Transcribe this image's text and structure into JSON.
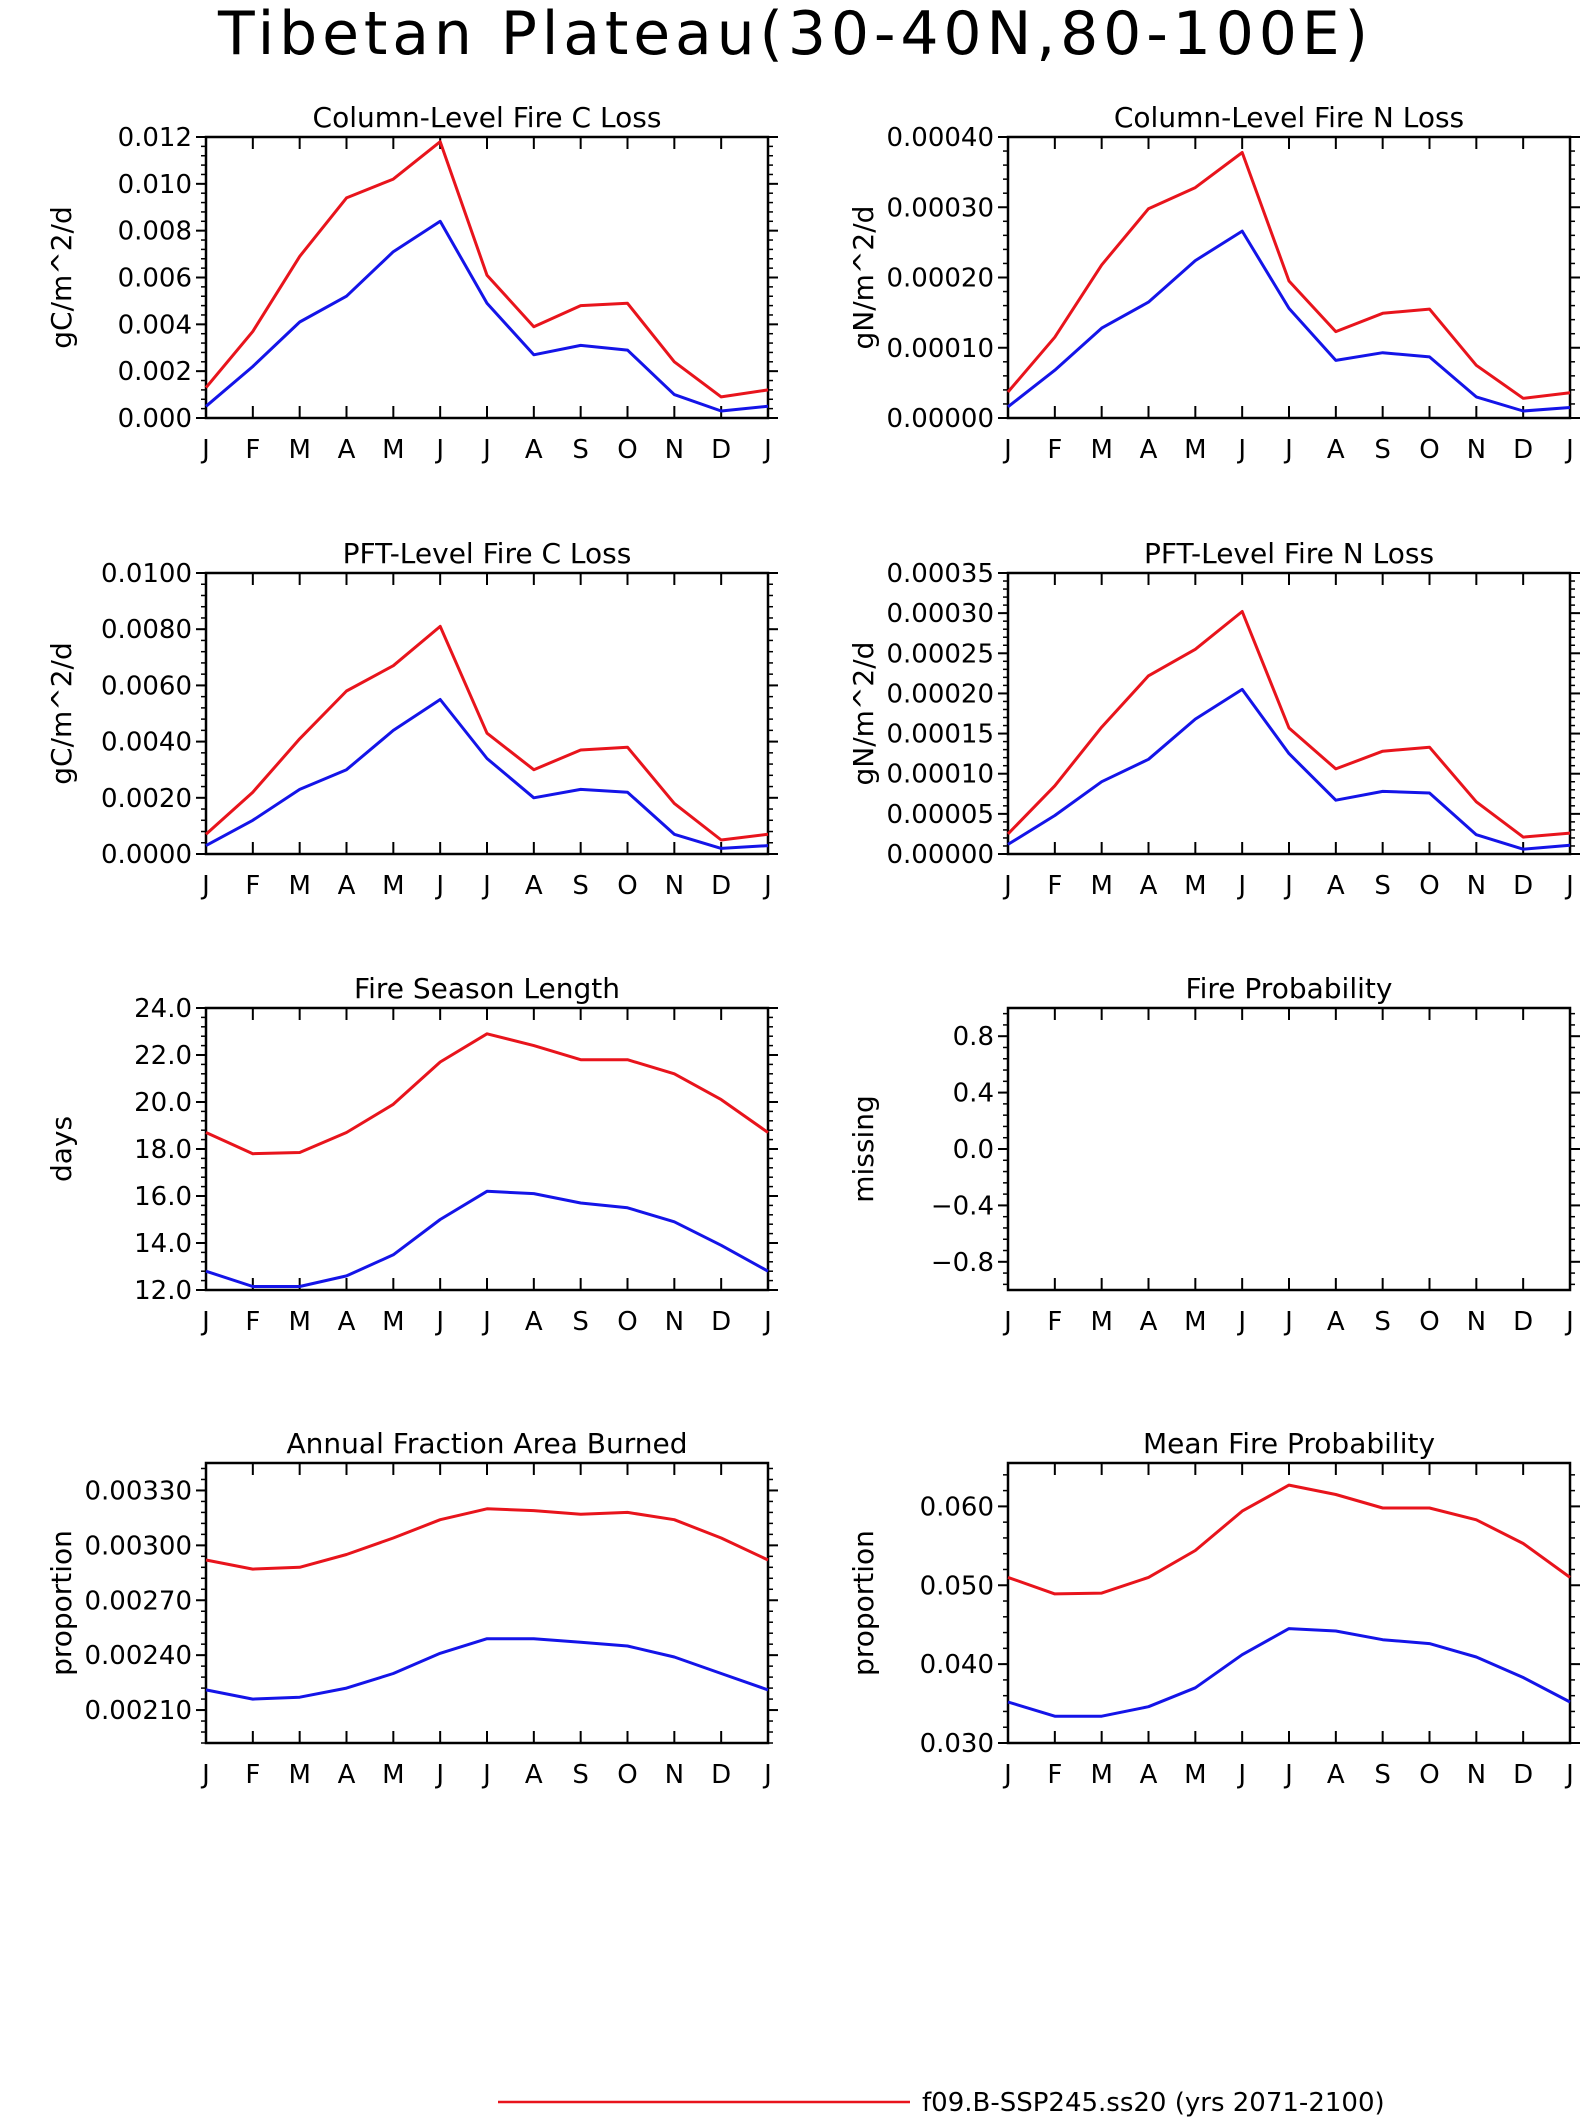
{
  "figure": {
    "title": "Tibetan Plateau(30-40N,80-100E)",
    "legend": [
      {
        "label": "f09.B-SSP245.ss20 (yrs 2071-2100)",
        "color": "#e8141c"
      }
    ]
  },
  "chart_data": [
    {
      "type": "line",
      "title": "Column-Level Fire C Loss",
      "xlabel": "",
      "ylabel": "gC/m^2/d",
      "categories": [
        "J",
        "F",
        "M",
        "A",
        "M",
        "J",
        "J",
        "A",
        "S",
        "O",
        "N",
        "D",
        "J"
      ],
      "ylim": [
        0,
        0.012
      ],
      "yticks": [
        0,
        0.002,
        0.004,
        0.006,
        0.008,
        0.01,
        0.012
      ],
      "ytick_labels": [
        "0.000",
        "0.002",
        "0.004",
        "0.006",
        "0.008",
        "0.010",
        "0.012"
      ],
      "series": [
        {
          "color": "#e8141c",
          "values": [
            0.0013,
            0.0037,
            0.0069,
            0.0094,
            0.0102,
            0.0118,
            0.0061,
            0.0039,
            0.0048,
            0.0049,
            0.0024,
            0.0009,
            0.0012
          ]
        },
        {
          "color": "#1414e8",
          "values": [
            0.0005,
            0.0022,
            0.0041,
            0.0052,
            0.0071,
            0.0084,
            0.0049,
            0.0027,
            0.0031,
            0.0029,
            0.001,
            0.0003,
            0.0005
          ]
        }
      ]
    },
    {
      "type": "line",
      "title": "Column-Level Fire N Loss",
      "xlabel": "",
      "ylabel": "gN/m^2/d",
      "categories": [
        "J",
        "F",
        "M",
        "A",
        "M",
        "J",
        "J",
        "A",
        "S",
        "O",
        "N",
        "D",
        "J"
      ],
      "ylim": [
        0,
        0.0004
      ],
      "yticks": [
        0,
        0.0001,
        0.0002,
        0.0003,
        0.0004
      ],
      "ytick_labels": [
        "0.00000",
        "0.00010",
        "0.00020",
        "0.00030",
        "0.00040"
      ],
      "series": [
        {
          "color": "#e8141c",
          "values": [
            3.7e-05,
            0.000115,
            0.000218,
            0.000298,
            0.000328,
            0.000378,
            0.000195,
            0.000123,
            0.000149,
            0.000155,
            7.5e-05,
            2.8e-05,
            3.6e-05
          ]
        },
        {
          "color": "#1414e8",
          "values": [
            1.6e-05,
            6.8e-05,
            0.000128,
            0.000165,
            0.000224,
            0.000266,
            0.000156,
            8.2e-05,
            9.3e-05,
            8.7e-05,
            3e-05,
            1e-05,
            1.5e-05
          ]
        }
      ]
    },
    {
      "type": "line",
      "title": "PFT-Level Fire C Loss",
      "xlabel": "",
      "ylabel": "gC/m^2/d",
      "categories": [
        "J",
        "F",
        "M",
        "A",
        "M",
        "J",
        "J",
        "A",
        "S",
        "O",
        "N",
        "D",
        "J"
      ],
      "ylim": [
        0,
        0.01
      ],
      "yticks": [
        0,
        0.002,
        0.004,
        0.006,
        0.008,
        0.01
      ],
      "ytick_labels": [
        "0.0000",
        "0.0020",
        "0.0040",
        "0.0060",
        "0.0080",
        "0.0100"
      ],
      "series": [
        {
          "color": "#e8141c",
          "values": [
            0.0007,
            0.0022,
            0.0041,
            0.0058,
            0.0067,
            0.0081,
            0.0043,
            0.003,
            0.0037,
            0.0038,
            0.0018,
            0.0005,
            0.0007
          ]
        },
        {
          "color": "#1414e8",
          "values": [
            0.0003,
            0.0012,
            0.0023,
            0.003,
            0.0044,
            0.0055,
            0.0034,
            0.002,
            0.0023,
            0.0022,
            0.0007,
            0.0002,
            0.0003
          ]
        }
      ]
    },
    {
      "type": "line",
      "title": "PFT-Level Fire N Loss",
      "xlabel": "",
      "ylabel": "gN/m^2/d",
      "categories": [
        "J",
        "F",
        "M",
        "A",
        "M",
        "J",
        "J",
        "A",
        "S",
        "O",
        "N",
        "D",
        "J"
      ],
      "ylim": [
        0,
        0.00035
      ],
      "yticks": [
        0,
        5e-05,
        0.0001,
        0.00015,
        0.0002,
        0.00025,
        0.0003,
        0.00035
      ],
      "ytick_labels": [
        "0.00000",
        "0.00005",
        "0.00010",
        "0.00015",
        "0.00020",
        "0.00025",
        "0.00030",
        "0.00035"
      ],
      "series": [
        {
          "color": "#e8141c",
          "values": [
            2.5e-05,
            8.5e-05,
            0.000158,
            0.000222,
            0.000255,
            0.000302,
            0.000157,
            0.000106,
            0.000128,
            0.000133,
            6.5e-05,
            2.1e-05,
            2.6e-05
          ]
        },
        {
          "color": "#1414e8",
          "values": [
            1.2e-05,
            4.8e-05,
            9e-05,
            0.000118,
            0.000168,
            0.000205,
            0.000125,
            6.7e-05,
            7.8e-05,
            7.6e-05,
            2.4e-05,
            6e-06,
            1.1e-05
          ]
        }
      ]
    },
    {
      "type": "line",
      "title": "Fire Season Length",
      "xlabel": "",
      "ylabel": "days",
      "categories": [
        "J",
        "F",
        "M",
        "A",
        "M",
        "J",
        "J",
        "A",
        "S",
        "O",
        "N",
        "D",
        "J"
      ],
      "ylim": [
        12,
        24
      ],
      "yticks": [
        12,
        14,
        16,
        18,
        20,
        22,
        24
      ],
      "ytick_labels": [
        "12.0",
        "14.0",
        "16.0",
        "18.0",
        "20.0",
        "22.0",
        "24.0"
      ],
      "series": [
        {
          "color": "#e8141c",
          "values": [
            18.7,
            17.8,
            17.85,
            18.7,
            19.9,
            21.7,
            22.9,
            22.4,
            21.8,
            21.8,
            21.2,
            20.1,
            18.7
          ]
        },
        {
          "color": "#1414e8",
          "values": [
            12.8,
            12.15,
            12.15,
            12.6,
            13.5,
            15.0,
            16.2,
            16.1,
            15.7,
            15.5,
            14.9,
            13.9,
            12.8
          ]
        }
      ]
    },
    {
      "type": "line",
      "title": "Fire Probability",
      "xlabel": "",
      "ylabel": "missing",
      "categories": [
        "J",
        "F",
        "M",
        "A",
        "M",
        "J",
        "J",
        "A",
        "S",
        "O",
        "N",
        "D",
        "J"
      ],
      "ylim": [
        -1,
        1
      ],
      "yticks": [
        -0.8,
        -0.4,
        0,
        0.4,
        0.8
      ],
      "ytick_labels": [
        "−0.8",
        "−0.4",
        "0.0",
        "0.4",
        "0.8"
      ],
      "series": []
    },
    {
      "type": "line",
      "title": "Annual Fraction Area Burned",
      "xlabel": "",
      "ylabel": "proportion",
      "categories": [
        "J",
        "F",
        "M",
        "A",
        "M",
        "J",
        "J",
        "A",
        "S",
        "O",
        "N",
        "D",
        "J"
      ],
      "ylim": [
        0.00192,
        0.00345
      ],
      "yticks": [
        0.0021,
        0.0024,
        0.0027,
        0.003,
        0.0033
      ],
      "ytick_labels": [
        "0.00210",
        "0.00240",
        "0.00270",
        "0.00300",
        "0.00330"
      ],
      "series": [
        {
          "color": "#e8141c",
          "values": [
            0.00292,
            0.00287,
            0.00288,
            0.00295,
            0.00304,
            0.00314,
            0.0032,
            0.00319,
            0.00317,
            0.00318,
            0.00314,
            0.00304,
            0.00292
          ]
        },
        {
          "color": "#1414e8",
          "values": [
            0.00221,
            0.00216,
            0.00217,
            0.00222,
            0.0023,
            0.00241,
            0.00249,
            0.00249,
            0.00247,
            0.00245,
            0.00239,
            0.0023,
            0.00221
          ]
        }
      ]
    },
    {
      "type": "line",
      "title": "Mean Fire Probability",
      "xlabel": "",
      "ylabel": "proportion",
      "categories": [
        "J",
        "F",
        "M",
        "A",
        "M",
        "J",
        "J",
        "A",
        "S",
        "O",
        "N",
        "D",
        "J"
      ],
      "ylim": [
        0.03,
        0.0655
      ],
      "yticks": [
        0.03,
        0.04,
        0.05,
        0.06
      ],
      "ytick_labels": [
        "0.030",
        "0.040",
        "0.050",
        "0.060"
      ],
      "series": [
        {
          "color": "#e8141c",
          "values": [
            0.051,
            0.0489,
            0.049,
            0.051,
            0.0544,
            0.0594,
            0.0627,
            0.0615,
            0.0598,
            0.0598,
            0.0583,
            0.0553,
            0.051
          ]
        },
        {
          "color": "#1414e8",
          "values": [
            0.0352,
            0.0334,
            0.0334,
            0.0346,
            0.037,
            0.0412,
            0.0445,
            0.0442,
            0.0431,
            0.0426,
            0.0409,
            0.0383,
            0.0352
          ]
        }
      ]
    }
  ]
}
